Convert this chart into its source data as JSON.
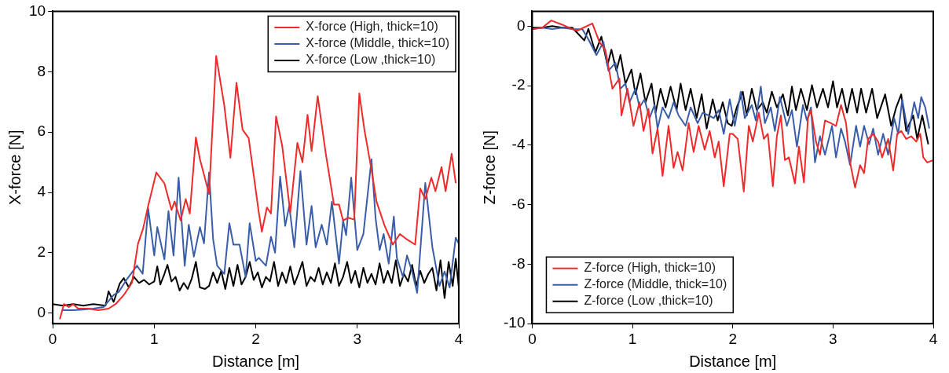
{
  "chart_data": [
    {
      "type": "line",
      "xlabel": "Distance [m]",
      "ylabel": "X-force [N]",
      "xlim": [
        0,
        4
      ],
      "xticks": [
        0,
        1,
        2,
        3,
        4
      ],
      "ylim": [
        -0.35,
        10
      ],
      "yticks": [
        0,
        2,
        4,
        6,
        8,
        10
      ],
      "grid": false,
      "legend": "top right",
      "marker": "none",
      "line_style": "solid",
      "series": [
        {
          "name": "X-force (High, thick=10)",
          "color": "#ee2a2a",
          "x": [
            0.07,
            0.11,
            0.16,
            0.2,
            0.25,
            0.35,
            0.45,
            0.55,
            0.62,
            0.7,
            0.78,
            0.84,
            0.89,
            0.94,
            1.02,
            1.1,
            1.17,
            1.2,
            1.26,
            1.31,
            1.35,
            1.41,
            1.45,
            1.54,
            1.61,
            1.69,
            1.75,
            1.81,
            1.87,
            1.93,
            2.03,
            2.06,
            2.11,
            2.15,
            2.2,
            2.26,
            2.34,
            2.41,
            2.46,
            2.51,
            2.55,
            2.61,
            2.69,
            2.77,
            2.82,
            2.86,
            2.91,
            2.97,
            3.02,
            3.07,
            3.14,
            3.19,
            3.27,
            3.35,
            3.42,
            3.49,
            3.57,
            3.62,
            3.67,
            3.73,
            3.77,
            3.83,
            3.87,
            3.93,
            3.97
          ],
          "values": [
            -0.2,
            0.3,
            0.2,
            0.3,
            0.15,
            0.15,
            0.1,
            0.15,
            0.3,
            0.6,
            1.0,
            2.3,
            2.8,
            3.55,
            4.66,
            4.3,
            3.42,
            3.7,
            3.07,
            3.78,
            3.3,
            5.82,
            5.1,
            3.95,
            8.52,
            6.88,
            5.15,
            7.63,
            6.08,
            5.8,
            3.33,
            2.7,
            3.5,
            3.3,
            6.52,
            5.55,
            3.33,
            5.64,
            5.0,
            6.57,
            5.37,
            7.19,
            5.28,
            3.6,
            3.6,
            3.07,
            3.16,
            3.1,
            7.28,
            6.08,
            4.75,
            3.69,
            2.89,
            2.27,
            2.62,
            2.44,
            2.27,
            4.13,
            3.78,
            4.49,
            4.04,
            4.84,
            4.04,
            5.28,
            4.31
          ]
        },
        {
          "name": "X-force (Middle, thick=10)",
          "color": "#3a5daa",
          "x": [
            0.1,
            0.2,
            0.3,
            0.4,
            0.5,
            0.55,
            0.6,
            0.65,
            0.73,
            0.83,
            0.886,
            0.94,
            1.0,
            1.03,
            1.1,
            1.14,
            1.19,
            1.24,
            1.3,
            1.34,
            1.39,
            1.45,
            1.49,
            1.54,
            1.58,
            1.62,
            1.69,
            1.74,
            1.78,
            1.84,
            1.9,
            1.94,
            2.0,
            2.03,
            2.1,
            2.15,
            2.19,
            2.24,
            2.29,
            2.33,
            2.38,
            2.44,
            2.5,
            2.55,
            2.59,
            2.65,
            2.7,
            2.75,
            2.82,
            2.86,
            2.89,
            2.94,
            3.0,
            3.06,
            3.14,
            3.18,
            3.22,
            3.26,
            3.31,
            3.36,
            3.39,
            3.45,
            3.49,
            3.54,
            3.59,
            3.67,
            3.74,
            3.81,
            3.86,
            3.91,
            3.97,
            4.0
          ],
          "values": [
            0.1,
            0.1,
            0.12,
            0.15,
            0.2,
            0.4,
            0.6,
            0.7,
            1.12,
            1.57,
            1.3,
            3.47,
            1.91,
            2.85,
            1.78,
            3.38,
            1.91,
            4.49,
            1.57,
            2.93,
            1.87,
            2.85,
            2.31,
            4.66,
            2.44,
            1.57,
            1.3,
            2.98,
            2.27,
            2.27,
            1.2,
            2.98,
            1.73,
            1.83,
            1.57,
            2.53,
            2.0,
            4.53,
            2.89,
            3.55,
            2.18,
            4.71,
            2.27,
            3.55,
            2.18,
            2.93,
            2.27,
            3.69,
            1.64,
            3.07,
            2.58,
            4.49,
            2.09,
            2.62,
            5.1,
            3.16,
            2.09,
            2.62,
            1.64,
            3.2,
            1.83,
            1.2,
            1.91,
            1.38,
            0.67,
            4.31,
            2.18,
            0.9,
            1.38,
            0.85,
            2.5,
            2.3
          ]
        },
        {
          "name": "X-force (Low ,thick=10)",
          "color": "#000000",
          "x": [
            0,
            0.1,
            0.2,
            0.3,
            0.4,
            0.52,
            0.55,
            0.6,
            0.66,
            0.7,
            0.75,
            0.8,
            0.85,
            0.9,
            0.95,
            1.0,
            1.03,
            1.06,
            1.1,
            1.13,
            1.17,
            1.21,
            1.25,
            1.29,
            1.33,
            1.37,
            1.41,
            1.45,
            1.5,
            1.54,
            1.58,
            1.62,
            1.66,
            1.7,
            1.74,
            1.78,
            1.82,
            1.86,
            1.9,
            1.94,
            1.98,
            2.02,
            2.06,
            2.1,
            2.14,
            2.18,
            2.22,
            2.26,
            2.3,
            2.34,
            2.38,
            2.42,
            2.46,
            2.5,
            2.54,
            2.58,
            2.62,
            2.66,
            2.7,
            2.74,
            2.78,
            2.82,
            2.86,
            2.9,
            2.94,
            2.98,
            3.02,
            3.06,
            3.1,
            3.14,
            3.18,
            3.22,
            3.26,
            3.3,
            3.34,
            3.38,
            3.42,
            3.46,
            3.5,
            3.54,
            3.58,
            3.62,
            3.66,
            3.7,
            3.74,
            3.78,
            3.82,
            3.86,
            3.9,
            3.94,
            3.97,
            4.0
          ],
          "values": [
            0.3,
            0.25,
            0.3,
            0.25,
            0.3,
            0.25,
            0.72,
            0.37,
            0.98,
            1.16,
            0.85,
            1.2,
            1.0,
            1.1,
            0.95,
            1.05,
            1.55,
            0.95,
            1.3,
            1.6,
            1.05,
            1.2,
            0.75,
            1.0,
            0.8,
            1.15,
            1.7,
            0.85,
            0.8,
            0.9,
            1.35,
            1.0,
            1.4,
            0.8,
            1.5,
            0.9,
            1.6,
            0.95,
            1.2,
            1.7,
            1.1,
            1.35,
            0.85,
            1.2,
            1.05,
            1.7,
            0.9,
            1.35,
            1.0,
            1.55,
            0.95,
            1.3,
            1.7,
            0.9,
            1.2,
            1.05,
            1.5,
            0.95,
            1.35,
            1.0,
            1.65,
            0.9,
            1.2,
            1.7,
            1.0,
            1.4,
            0.85,
            1.5,
            1.0,
            1.3,
            0.95,
            1.65,
            1.0,
            1.4,
            1.0,
            1.75,
            0.9,
            1.3,
            1.05,
            1.6,
            0.9,
            1.4,
            1.0,
            1.3,
            1.5,
            0.75,
            1.75,
            0.5,
            1.7,
            0.9,
            1.8,
            0.85
          ]
        }
      ]
    },
    {
      "type": "line",
      "xlabel": "Distance [m]",
      "ylabel": "Z-force [N]",
      "xlim": [
        0,
        4
      ],
      "xticks": [
        0,
        1,
        2,
        3,
        4
      ],
      "ylim": [
        -10,
        0.5
      ],
      "yticks": [
        -10,
        -8,
        -6,
        -4,
        -2,
        0
      ],
      "grid": false,
      "legend": "bottom left",
      "marker": "none",
      "line_style": "solid",
      "series": [
        {
          "name": "Z-force (High, thick=10)",
          "color": "#ee2a2a",
          "x": [
            0,
            0.1,
            0.19,
            0.3,
            0.4,
            0.45,
            0.6,
            0.67,
            0.73,
            0.8,
            0.87,
            0.89,
            0.95,
            1.01,
            1.07,
            1.11,
            1.16,
            1.2,
            1.25,
            1.3,
            1.36,
            1.41,
            1.45,
            1.5,
            1.56,
            1.61,
            1.66,
            1.72,
            1.77,
            1.82,
            1.86,
            1.91,
            1.97,
            2.0,
            2.05,
            2.11,
            2.16,
            2.2,
            2.26,
            2.31,
            2.35,
            2.4,
            2.44,
            2.48,
            2.52,
            2.56,
            2.62,
            2.66,
            2.71,
            2.75,
            2.78,
            2.83,
            2.87,
            2.92,
            2.98,
            3.03,
            3.08,
            3.13,
            3.17,
            3.22,
            3.27,
            3.31,
            3.35,
            3.4,
            3.45,
            3.49,
            3.55,
            3.6,
            3.64,
            3.68,
            3.73,
            3.78,
            3.83,
            3.87,
            3.9,
            3.94,
            4.0
          ],
          "values": [
            -0.1,
            -0.05,
            0.19,
            0.05,
            -0.1,
            -0.15,
            0.09,
            -0.53,
            -0.8,
            -2.1,
            -1.76,
            -3.0,
            -2.1,
            -3.35,
            -2.56,
            -3.52,
            -2.78,
            -4.28,
            -3.44,
            -5.03,
            -3.35,
            -4.76,
            -4.23,
            -4.85,
            -3.26,
            -4.23,
            -3.35,
            -4.15,
            -3.52,
            -4.41,
            -3.88,
            -5.38,
            -3.62,
            -3.62,
            -3.79,
            -5.56,
            -3.35,
            -3.88,
            -2.91,
            -3.79,
            -3.62,
            -5.38,
            -3.7,
            -3.0,
            -4.5,
            -4.41,
            -5.29,
            -4.05,
            -5.25,
            -3.09,
            -2.82,
            -3.88,
            -4.32,
            -3.17,
            -3.26,
            -3.35,
            -2.65,
            -3.26,
            -4.58,
            -5.42,
            -4.67,
            -4.94,
            -3.79,
            -3.62,
            -3.88,
            -4.41,
            -3.79,
            -4.85,
            -3.62,
            -3.52,
            -3.79,
            -3.7,
            -3.88,
            -3.62,
            -4.41,
            -4.58,
            -4.5
          ]
        },
        {
          "name": "Z-force (Middle, thick=10)",
          "color": "#3a5daa",
          "x": [
            0,
            0.1,
            0.2,
            0.3,
            0.4,
            0.5,
            0.56,
            0.64,
            0.71,
            0.76,
            0.83,
            0.88,
            0.93,
            0.97,
            1.03,
            1.07,
            1.12,
            1.17,
            1.22,
            1.25,
            1.3,
            1.36,
            1.41,
            1.46,
            1.53,
            1.58,
            1.65,
            1.7,
            1.76,
            1.81,
            1.86,
            1.91,
            1.97,
            2.02,
            2.08,
            2.12,
            2.19,
            2.23,
            2.28,
            2.32,
            2.38,
            2.42,
            2.47,
            2.54,
            2.59,
            2.64,
            2.7,
            2.74,
            2.78,
            2.82,
            2.87,
            2.92,
            2.99,
            3.03,
            3.08,
            3.12,
            3.17,
            3.23,
            3.27,
            3.31,
            3.36,
            3.4,
            3.45,
            3.5,
            3.55,
            3.61,
            3.65,
            3.69,
            3.75,
            3.81,
            3.85,
            3.88,
            3.92,
            3.96
          ],
          "values": [
            -0.1,
            -0.05,
            -0.1,
            -0.05,
            -0.1,
            -0.1,
            -0.44,
            -0.97,
            -0.53,
            -1.5,
            -1.23,
            -2.1,
            -1.93,
            -2.56,
            -2.1,
            -2.73,
            -2.46,
            -3.09,
            -2.65,
            -3.44,
            -2.73,
            -3.09,
            -2.56,
            -3.0,
            -3.35,
            -2.73,
            -3.26,
            -2.91,
            -3.0,
            -3.09,
            -2.82,
            -3.62,
            -2.46,
            -3.35,
            -2.2,
            -3.09,
            -2.65,
            -3.17,
            -2.03,
            -3.26,
            -2.73,
            -3.52,
            -2.38,
            -3.35,
            -2.82,
            -4.05,
            -2.65,
            -3.17,
            -2.73,
            -4.58,
            -3.7,
            -4.32,
            -3.35,
            -4.41,
            -3.44,
            -3.88,
            -4.67,
            -3.35,
            -4.05,
            -3.35,
            -3.97,
            -3.44,
            -4.32,
            -3.62,
            -4.32,
            -3.09,
            -3.62,
            -2.46,
            -3.62,
            -2.56,
            -3.09,
            -2.38,
            -2.73,
            -3.44
          ]
        },
        {
          "name": "Z-force (Low ,thick=10)",
          "color": "#000000",
          "x": [
            0,
            0.1,
            0.2,
            0.3,
            0.4,
            0.52,
            0.56,
            0.63,
            0.69,
            0.75,
            0.79,
            0.84,
            0.88,
            0.93,
            0.99,
            1.03,
            1.08,
            1.13,
            1.19,
            1.23,
            1.28,
            1.33,
            1.38,
            1.44,
            1.48,
            1.53,
            1.58,
            1.64,
            1.69,
            1.74,
            1.8,
            1.85,
            1.9,
            1.95,
            1.99,
            2.04,
            2.1,
            2.14,
            2.19,
            2.24,
            2.3,
            2.34,
            2.39,
            2.44,
            2.5,
            2.55,
            2.59,
            2.63,
            2.68,
            2.74,
            2.79,
            2.84,
            2.9,
            2.95,
            3.0,
            3.04,
            3.09,
            3.14,
            3.19,
            3.24,
            3.28,
            3.33,
            3.39,
            3.44,
            3.52,
            3.58,
            3.63,
            3.68,
            3.73,
            3.8,
            3.84,
            3.89,
            3.95
          ],
          "values": [
            -0.05,
            -0.05,
            0.0,
            -0.05,
            -0.05,
            -0.48,
            -0.09,
            -0.88,
            -0.35,
            -1.32,
            -0.79,
            -1.5,
            -0.97,
            -1.93,
            -1.46,
            -2.29,
            -1.59,
            -2.56,
            -1.93,
            -2.91,
            -2.1,
            -2.73,
            -2.03,
            -2.82,
            -1.93,
            -2.82,
            -2.1,
            -3.09,
            -2.29,
            -3.44,
            -2.46,
            -3.17,
            -2.56,
            -3.26,
            -3.35,
            -2.73,
            -2.2,
            -3.0,
            -2.1,
            -2.82,
            -2.56,
            -2.91,
            -2.2,
            -2.73,
            -2.29,
            -3.0,
            -2.03,
            -2.82,
            -2.1,
            -2.82,
            -1.98,
            -2.73,
            -2.1,
            -2.73,
            -1.85,
            -2.73,
            -2.1,
            -2.91,
            -2.1,
            -2.91,
            -2.1,
            -2.91,
            -2.1,
            -3.09,
            -2.29,
            -3.35,
            -2.73,
            -2.29,
            -3.52,
            -3.0,
            -3.79,
            -3.0,
            -3.97
          ]
        }
      ]
    }
  ]
}
